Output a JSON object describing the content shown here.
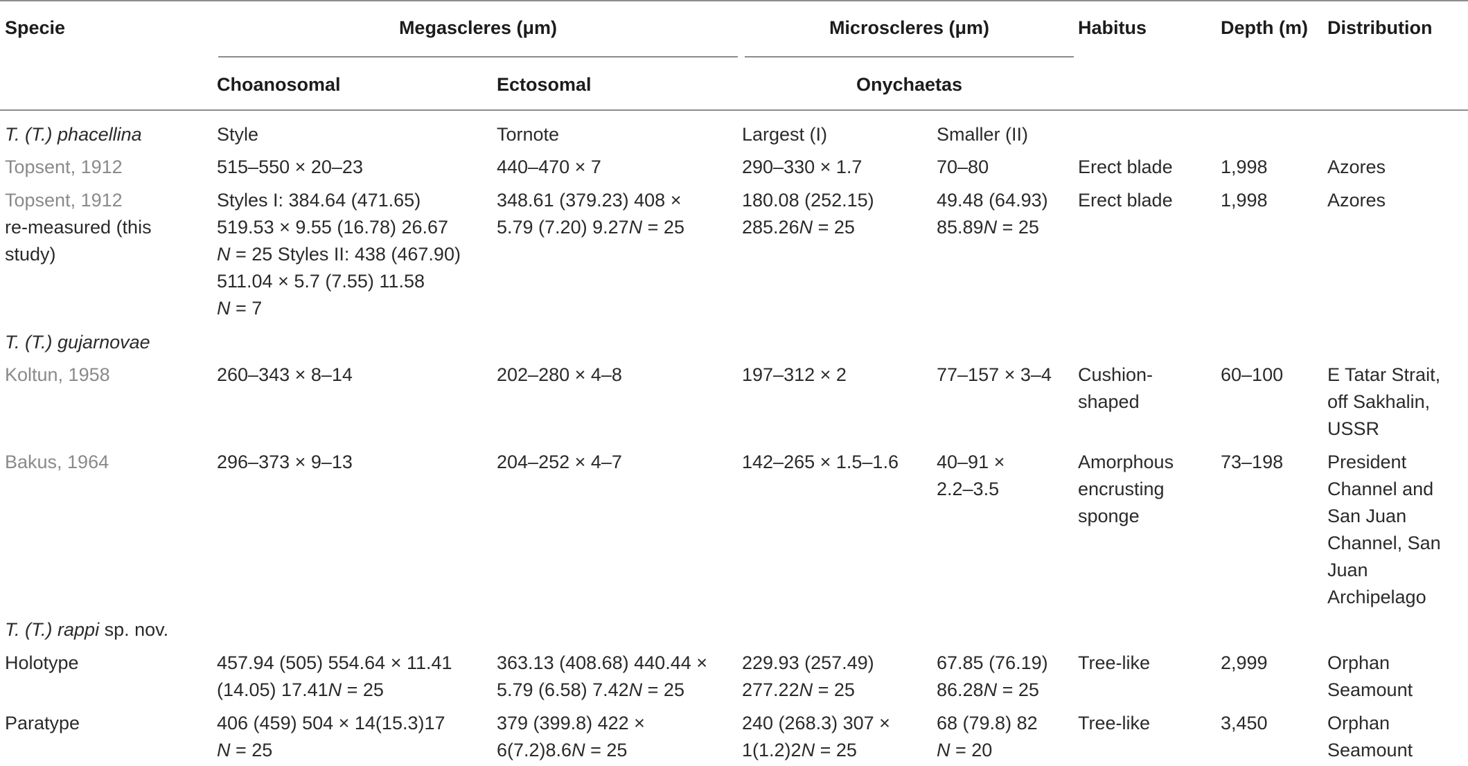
{
  "header": {
    "specie": "Specie",
    "megascleres": "Megascleres (μm)",
    "microscleres": "Microscleres (μm)",
    "habitus": "Habitus",
    "depth": "Depth (m)",
    "distribution": "Distribution",
    "choanosomal": "Choanosomal",
    "ectosomal": "Ectosomal",
    "onychaetas": "Onychaetas"
  },
  "groups": [
    {
      "prefix": "T. (T.) ",
      "species": "phacellina",
      "suffix": "",
      "style": "Style",
      "tornote": "Tornote",
      "largest": "Largest (I)",
      "smaller": "Smaller (II)"
    },
    {
      "prefix": "T. (T.) ",
      "species": "gujarnovae",
      "suffix": ""
    },
    {
      "prefix": "T. (T.) ",
      "species": "rappi",
      "suffix": " sp. nov."
    }
  ],
  "rows": [
    {
      "specie": [
        "Topsent, 1912"
      ],
      "choanosomal": [
        "515–550 × 20–23"
      ],
      "ectosomal": [
        "440–470 × 7"
      ],
      "largest": [
        "290–330 × 1.7"
      ],
      "smaller": [
        "70–80"
      ],
      "habitus": [
        "Erect blade"
      ],
      "depth": [
        "1,998"
      ],
      "distribution": [
        "Azores"
      ]
    },
    {
      "specie": [
        "Topsent, 1912",
        "re-measured (this",
        "study)"
      ],
      "choanosomal": [
        "Styles I: 384.64 (471.65)",
        "519.53 × 9.55 (16.78) 26.67",
        "N = 25 Styles II: 438 (467.90)",
        "511.04 × 5.7 (7.55) 11.58",
        "N = 7"
      ],
      "ectosomal": [
        "348.61 (379.23) 408 ×",
        "5.79 (7.20) 9.27 N = 25"
      ],
      "largest": [
        "180.08 (252.15)",
        "285.26 N = 25"
      ],
      "smaller": [
        "49.48 (64.93)",
        "85.89 N = 25"
      ],
      "habitus": [
        "Erect blade"
      ],
      "depth": [
        "1,998"
      ],
      "distribution": [
        "Azores"
      ]
    },
    {
      "specie": [
        "Koltun, 1958"
      ],
      "choanosomal": [
        "260–343 × 8–14"
      ],
      "ectosomal": [
        "202–280 × 4–8"
      ],
      "largest": [
        "197–312 × 2"
      ],
      "smaller": [
        "77–157 × 3–4"
      ],
      "habitus": [
        "Cushion-",
        "shaped"
      ],
      "depth": [
        "60–100"
      ],
      "distribution": [
        "E Tatar Strait,",
        "off Sakhalin,",
        "USSR"
      ]
    },
    {
      "specie": [
        "Bakus, 1964"
      ],
      "choanosomal": [
        "296–373 × 9–13"
      ],
      "ectosomal": [
        "204–252 × 4–7"
      ],
      "largest": [
        "142–265 × 1.5–1.6"
      ],
      "smaller": [
        "40–91 ×",
        "2.2–3.5"
      ],
      "habitus": [
        "Amorphous",
        "encrusting",
        "sponge"
      ],
      "depth": [
        "73–198"
      ],
      "distribution": [
        "President",
        "Channel and",
        "San Juan",
        "Channel, San",
        "Juan",
        "Archipelago"
      ]
    },
    {
      "specie": [
        "Holotype"
      ],
      "choanosomal": [
        "457.94 (505) 554.64 × 11.41",
        "(14.05) 17.41 N = 25"
      ],
      "ectosomal": [
        "363.13 (408.68) 440.44 ×",
        "5.79 (6.58) 7.42 N = 25"
      ],
      "largest": [
        "229.93 (257.49)",
        "277.22 N = 25"
      ],
      "smaller": [
        "67.85 (76.19)",
        "86.28 N = 25"
      ],
      "habitus": [
        "Tree-like"
      ],
      "depth": [
        "2,999"
      ],
      "distribution": [
        "Orphan",
        "Seamount"
      ]
    },
    {
      "specie": [
        "Paratype"
      ],
      "choanosomal": [
        "406 (459) 504 × 14(15.3)17",
        "N = 25"
      ],
      "ectosomal": [
        "379 (399.8) 422 ×",
        "6(7.2)8.6 N = 25"
      ],
      "largest": [
        "240 (268.3) 307 ×",
        "1(1.2)2 N = 25"
      ],
      "smaller": [
        "68 (79.8) 82",
        "N = 20"
      ],
      "habitus": [
        "Tree-like"
      ],
      "depth": [
        "3,450"
      ],
      "distribution": [
        "Orphan",
        "Seamount"
      ]
    }
  ]
}
